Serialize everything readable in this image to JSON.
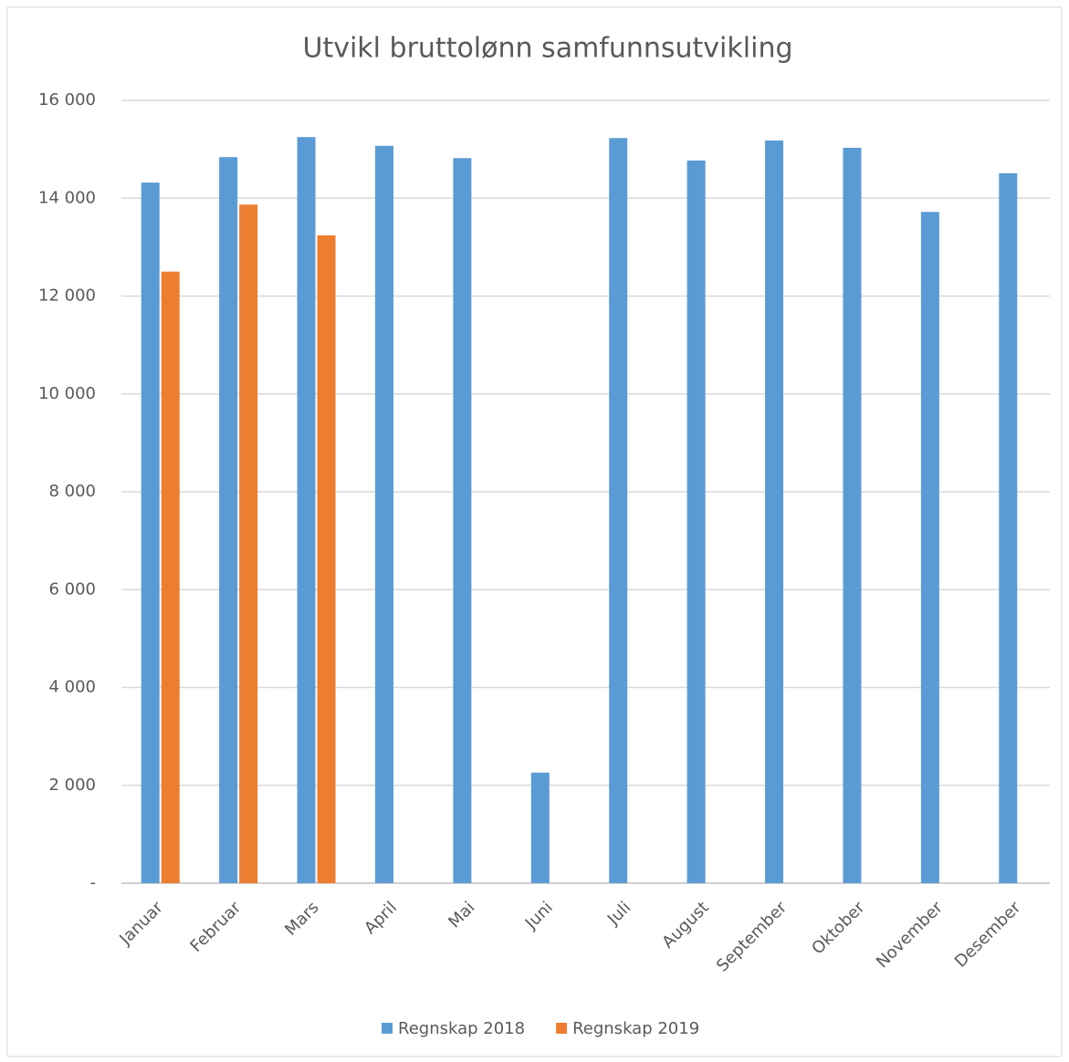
{
  "chart_data": {
    "type": "bar",
    "title": "Utvikl bruttolønn samfunnsutvikling",
    "categories": [
      "Januar",
      "Februar",
      "Mars",
      "April",
      "Mai",
      "Juni",
      "Juli",
      "August",
      "September",
      "Oktober",
      "November",
      "Desember"
    ],
    "series": [
      {
        "name": "Regnskap 2018",
        "color": "#5b9bd5",
        "values": [
          14320,
          14840,
          15250,
          15070,
          14820,
          2260,
          15230,
          14770,
          15180,
          15030,
          13720,
          14510
        ]
      },
      {
        "name": "Regnskap 2019",
        "color": "#ed7d31",
        "values": [
          12500,
          13870,
          13240,
          null,
          null,
          null,
          null,
          null,
          null,
          null,
          null,
          null
        ]
      }
    ],
    "ylim": [
      0,
      16000
    ],
    "yticks": [
      {
        "value": 0,
        "label": "-"
      },
      {
        "value": 2000,
        "label": "2 000"
      },
      {
        "value": 4000,
        "label": "4 000"
      },
      {
        "value": 6000,
        "label": "6 000"
      },
      {
        "value": 8000,
        "label": "8 000"
      },
      {
        "value": 10000,
        "label": "10 000"
      },
      {
        "value": 12000,
        "label": "12 000"
      },
      {
        "value": 14000,
        "label": "14 000"
      },
      {
        "value": 16000,
        "label": "16 000"
      }
    ],
    "grid": true,
    "legend": "bottom"
  }
}
